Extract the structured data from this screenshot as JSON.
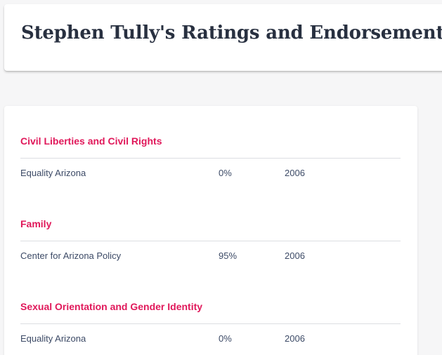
{
  "header": {
    "title": "Stephen Tully's Ratings and Endorsements"
  },
  "categories": [
    {
      "name": "Civil Liberties and Civil Rights",
      "ratings": [
        {
          "organization": "Equality Arizona",
          "score": "0%",
          "year": "2006"
        }
      ]
    },
    {
      "name": "Family",
      "ratings": [
        {
          "organization": "Center for Arizona Policy",
          "score": "95%",
          "year": "2006"
        }
      ]
    },
    {
      "name": "Sexual Orientation and Gender Identity",
      "ratings": [
        {
          "organization": "Equality Arizona",
          "score": "0%",
          "year": "2006"
        }
      ]
    }
  ],
  "colors": {
    "accent": "#e0185a",
    "title_text": "#283040",
    "body_text": "#3c4a66",
    "divider": "#dcdee2",
    "background": "#f6f6f7"
  }
}
